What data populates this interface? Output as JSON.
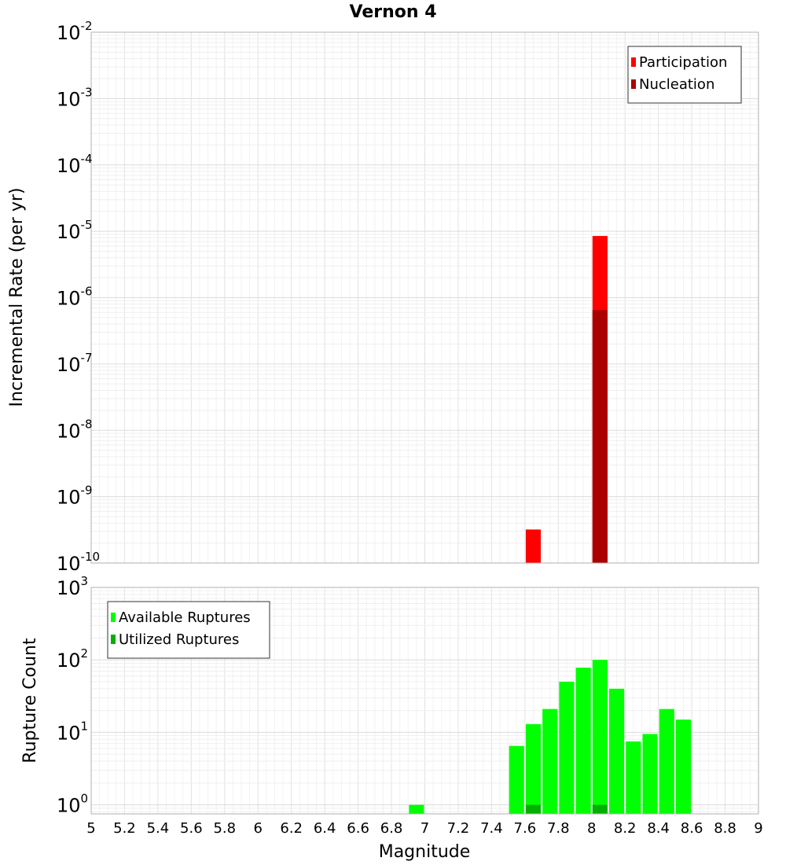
{
  "chart_data": {
    "title": "Vernon 4",
    "xlabel": "Magnitude",
    "xlim": [
      5,
      9
    ],
    "xticks": [
      "5",
      "5.2",
      "5.4",
      "5.6",
      "5.8",
      "6",
      "6.2",
      "6.4",
      "6.6",
      "6.8",
      "7",
      "7.2",
      "7.4",
      "7.6",
      "7.8",
      "8",
      "8.2",
      "8.4",
      "8.6",
      "8.8",
      "9"
    ],
    "grid": true,
    "panels": [
      {
        "type": "bar",
        "ylabel": "Incremental Rate (per yr)",
        "yscale": "log",
        "ylim": [
          1e-10,
          0.01
        ],
        "yticks": [
          {
            "base": "10",
            "exp": "-10"
          },
          {
            "base": "10",
            "exp": "-9"
          },
          {
            "base": "10",
            "exp": "-8"
          },
          {
            "base": "10",
            "exp": "-7"
          },
          {
            "base": "10",
            "exp": "-6"
          },
          {
            "base": "10",
            "exp": "-5"
          },
          {
            "base": "10",
            "exp": "-4"
          },
          {
            "base": "10",
            "exp": "-3"
          },
          {
            "base": "10",
            "exp": "-2"
          }
        ],
        "legend_position": "top-right",
        "bar_width": 0.09,
        "series": [
          {
            "name": "Participation",
            "color": "#ff0000",
            "points": [
              {
                "x": 7.65,
                "y": 3.2e-10
              },
              {
                "x": 8.05,
                "y": 8.5e-06
              }
            ]
          },
          {
            "name": "Nucleation",
            "color": "#aa0000",
            "points": [
              {
                "x": 8.05,
                "y": 6.5e-07
              }
            ]
          }
        ]
      },
      {
        "type": "bar",
        "ylabel": "Rupture Count",
        "yscale": "log",
        "ylim": [
          0.75,
          1000
        ],
        "yticks": [
          {
            "base": "10",
            "exp": "0"
          },
          {
            "base": "10",
            "exp": "1"
          },
          {
            "base": "10",
            "exp": "2"
          },
          {
            "base": "10",
            "exp": "3"
          }
        ],
        "legend_position": "top-left",
        "bar_width": 0.09,
        "series": [
          {
            "name": "Available Ruptures",
            "color": "#00ff00",
            "points": [
              {
                "x": 6.95,
                "y": 1
              },
              {
                "x": 7.55,
                "y": 6.5
              },
              {
                "x": 7.65,
                "y": 13
              },
              {
                "x": 7.75,
                "y": 21
              },
              {
                "x": 7.85,
                "y": 50
              },
              {
                "x": 7.95,
                "y": 78
              },
              {
                "x": 8.05,
                "y": 100
              },
              {
                "x": 8.15,
                "y": 40
              },
              {
                "x": 8.25,
                "y": 7.5
              },
              {
                "x": 8.35,
                "y": 9.5
              },
              {
                "x": 8.45,
                "y": 21
              },
              {
                "x": 8.55,
                "y": 15
              }
            ]
          },
          {
            "name": "Utilized Ruptures",
            "color": "#00b000",
            "points": [
              {
                "x": 7.65,
                "y": 1
              },
              {
                "x": 8.05,
                "y": 1
              }
            ]
          }
        ]
      }
    ]
  }
}
